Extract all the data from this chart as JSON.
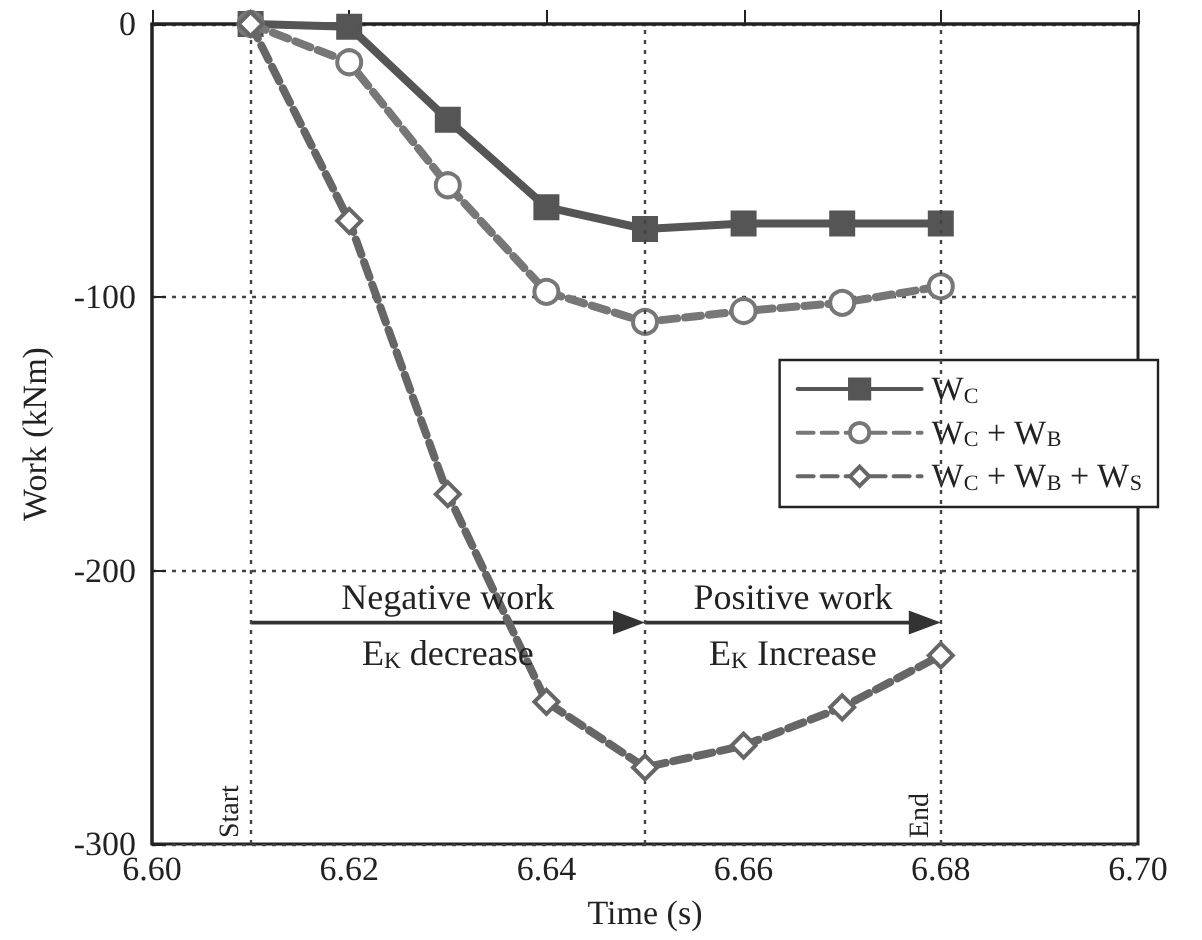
{
  "chart_data": {
    "type": "line",
    "xlabel": "Time (s)",
    "ylabel": "Work (kNm)",
    "x": [
      6.61,
      6.62,
      6.63,
      6.64,
      6.65,
      6.66,
      6.67,
      6.68
    ],
    "series": [
      {
        "name": "W$_{C}$",
        "color": "#555555",
        "marker": "square",
        "line_style": "solid",
        "values": [
          0,
          -1,
          -35,
          -67,
          -75,
          -73,
          -73,
          -73
        ]
      },
      {
        "name": "W$_{C}$ + W$_{B}$",
        "color": "#777777",
        "marker": "circle",
        "line_style": "dashed",
        "values": [
          0,
          -14,
          -59,
          -98,
          -109,
          -105,
          -102,
          -96
        ]
      },
      {
        "name": "W$_{C}$ + W$_{B}$ + W$_{S}$",
        "color": "#666666",
        "marker": "diamond",
        "line_style": "dashed",
        "values": [
          0,
          -72,
          -172,
          -248,
          -272,
          -264,
          -250,
          -231
        ]
      }
    ],
    "xlim": [
      6.6,
      6.7
    ],
    "xticks": [
      {
        "value": 6.6,
        "label": "6.60"
      },
      {
        "value": 6.62,
        "label": "6.62"
      },
      {
        "value": 6.64,
        "label": "6.64"
      },
      {
        "value": 6.66,
        "label": "6.66"
      },
      {
        "value": 6.68,
        "label": "6.68"
      },
      {
        "value": 6.7,
        "label": "6.70"
      }
    ],
    "ylim": [
      -300,
      0
    ],
    "yticks": [
      -300,
      -200,
      -100,
      0
    ],
    "grid": "y",
    "legend": "right",
    "ref_lines": [
      {
        "axis": "x",
        "value": 6.61,
        "label": "Start"
      },
      {
        "axis": "x",
        "value": 6.65,
        "label": null
      },
      {
        "axis": "x",
        "value": 6.68,
        "label": "End"
      }
    ],
    "annotations": [
      "Negative work",
      "E$_{K}$ decrease",
      "Positive work",
      "E$_{K}$ Increase"
    ]
  }
}
